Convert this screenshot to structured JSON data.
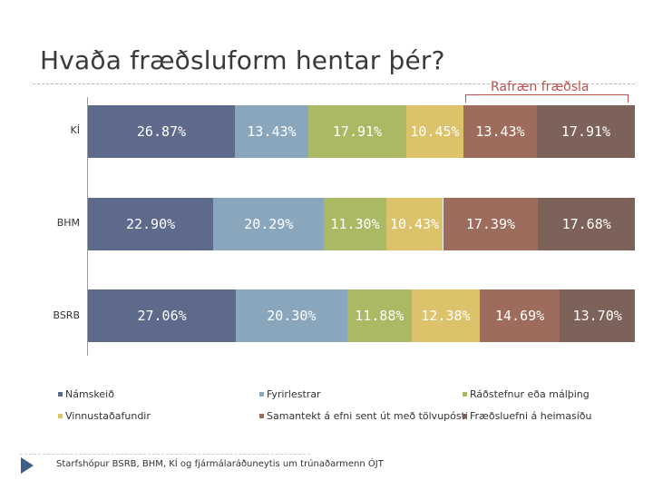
{
  "slide": {
    "title": "Hvaða fræðsluform hentar þér?",
    "bracket_label": "Rafræn fræðsla",
    "footer": "Starfshópur BSRB, BHM, KÍ og fjármálaráðuneytis um trúnaðarmenn ÓJT",
    "nav_icon": "triangle-right-icon"
  },
  "chart_data": {
    "type": "bar",
    "orientation": "horizontal",
    "stacked": "percent",
    "categories": [
      "KÍ",
      "BHM",
      "BSRB"
    ],
    "series": [
      {
        "name": "Námskeið",
        "color": "#5e6a8c",
        "values": [
          26.87,
          22.9,
          27.06
        ],
        "labels": [
          "26.87%",
          "22.90%",
          "27.06%"
        ]
      },
      {
        "name": "Fyrirlestrar",
        "color": "#8aa6bc",
        "values": [
          13.43,
          20.29,
          20.3
        ],
        "labels": [
          "13.43%",
          "20.29%",
          "20.30%"
        ]
      },
      {
        "name": "Ráðstefnur eða málþing",
        "color": "#a9b964",
        "values": [
          17.91,
          11.3,
          11.88
        ],
        "labels": [
          "17.91%",
          "11.30%",
          "11.88%"
        ]
      },
      {
        "name": "Vinnustaðafundir",
        "color": "#dcc26a",
        "values": [
          10.45,
          10.43,
          12.38
        ],
        "labels": [
          "10.45%",
          "10.43%",
          "12.38%"
        ]
      },
      {
        "name": "Samantekt á efni sent út með tölvupósti",
        "color": "#9d6c5c",
        "values": [
          13.43,
          17.39,
          14.69
        ],
        "labels": [
          "13.43%",
          "17.39%",
          "14.69%"
        ]
      },
      {
        "name": "Fræðsluefni á heimasíðu",
        "color": "#7d6259",
        "values": [
          17.91,
          17.68,
          13.7
        ],
        "labels": [
          "17.91%",
          "17.68%",
          "13.70%"
        ]
      }
    ],
    "xlim": [
      0,
      100
    ],
    "grid": false,
    "legend_position": "bottom"
  }
}
